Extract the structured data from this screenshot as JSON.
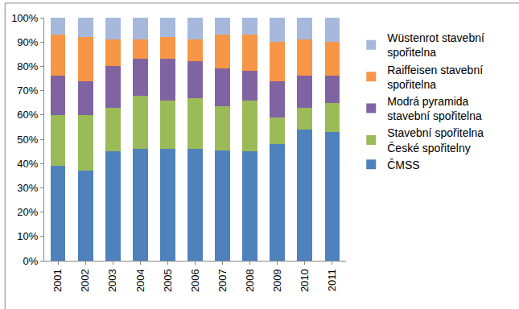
{
  "chart_data": {
    "type": "bar",
    "stacked": true,
    "categories": [
      "2001",
      "2002",
      "2003",
      "2004",
      "2005",
      "2006",
      "2007",
      "2008",
      "2009",
      "2010",
      "2011"
    ],
    "series": [
      {
        "name": "ČMSS",
        "color": "#4f81bd",
        "values": [
          39,
          37,
          45,
          46,
          46,
          46,
          45.5,
          45,
          48,
          54,
          53
        ]
      },
      {
        "name": "Stavební spořitelna České spořitelny",
        "color": "#9bbb59",
        "values": [
          21,
          23,
          18,
          22,
          20,
          21,
          18,
          21,
          11,
          9,
          12
        ]
      },
      {
        "name": "Modrá pyramida stavební spořitelna",
        "color": "#8064a2",
        "values": [
          16,
          14,
          17,
          15,
          17,
          15,
          15.5,
          12,
          15,
          13,
          11
        ]
      },
      {
        "name": "Raiffeisen stavební spořitelna",
        "color": "#f79646",
        "values": [
          17,
          18,
          11,
          8,
          9,
          9,
          14,
          15,
          16,
          15,
          14
        ]
      },
      {
        "name": "Wüstenrot stavební spořitelna",
        "color": "#a6b9dc",
        "values": [
          7,
          8,
          9,
          9,
          8,
          9,
          7,
          7,
          10,
          9,
          10
        ]
      }
    ],
    "ylim": [
      0,
      100
    ],
    "yticks": [
      {
        "value": 0,
        "label": "0%"
      },
      {
        "value": 10,
        "label": "10%"
      },
      {
        "value": 20,
        "label": "20%"
      },
      {
        "value": 30,
        "label": "30%"
      },
      {
        "value": 40,
        "label": "40%"
      },
      {
        "value": 50,
        "label": "50%"
      },
      {
        "value": 60,
        "label": "60%"
      },
      {
        "value": 70,
        "label": "70%"
      },
      {
        "value": 80,
        "label": "80%"
      },
      {
        "value": 90,
        "label": "90%"
      },
      {
        "value": 100,
        "label": "100%"
      }
    ],
    "grid": false,
    "legend": "right"
  }
}
